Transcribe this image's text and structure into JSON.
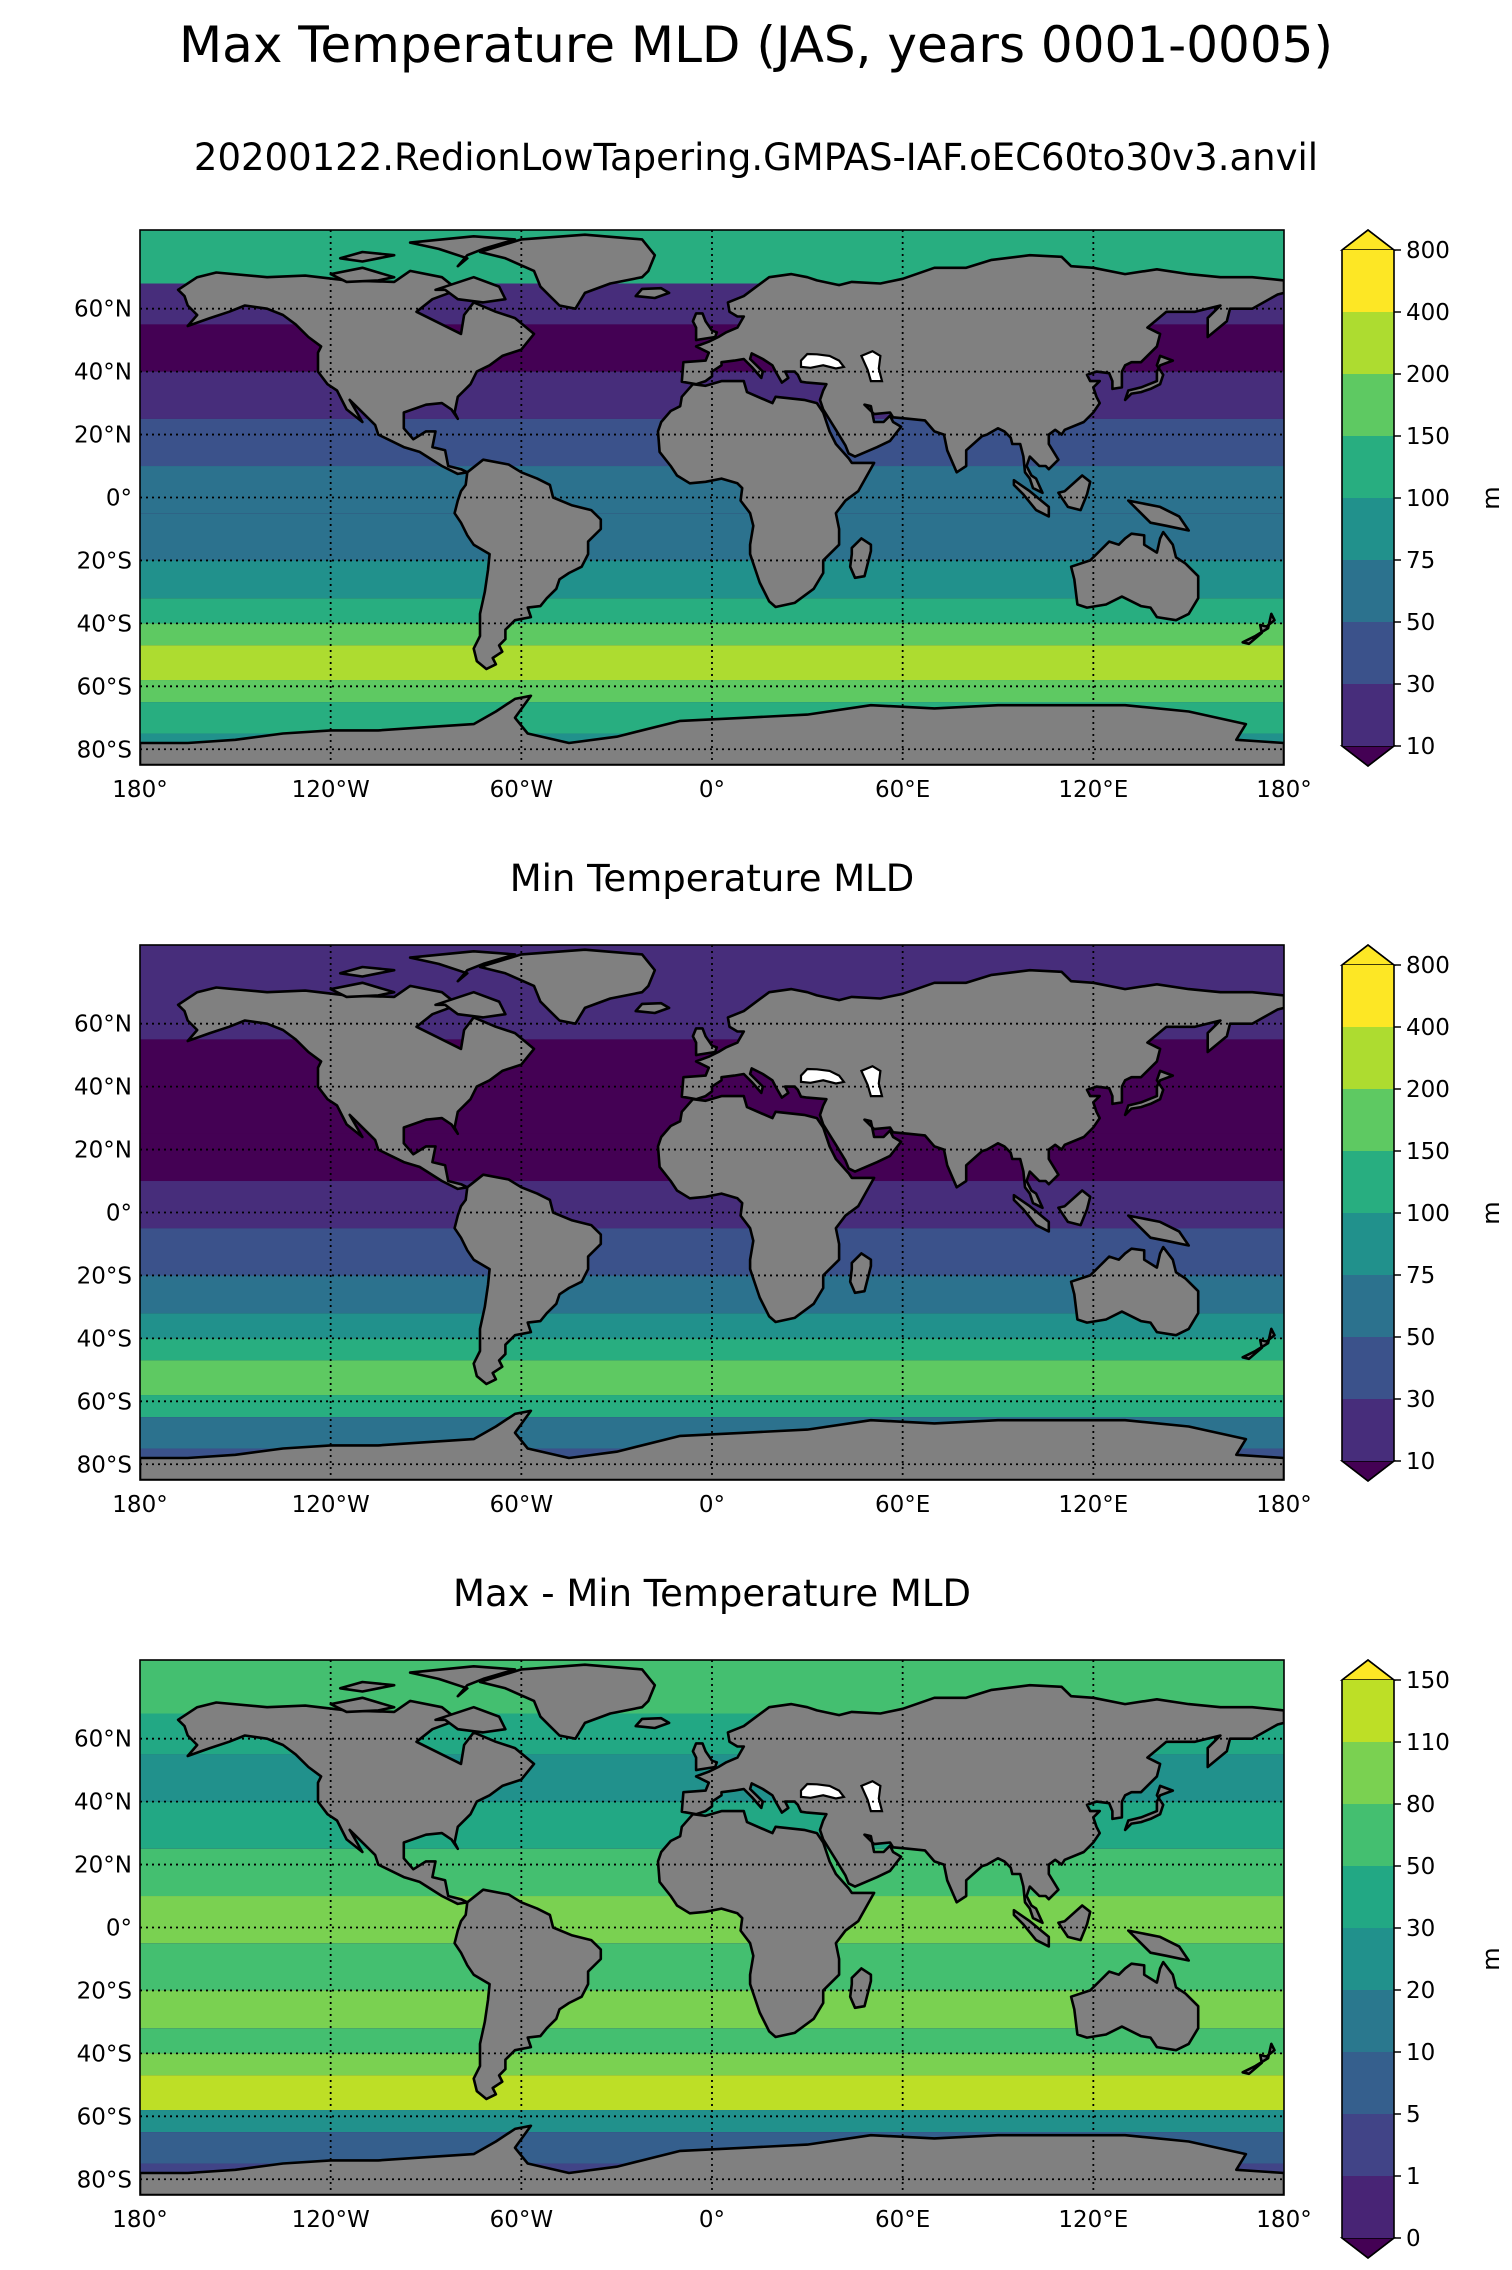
{
  "title": "Max Temperature MLD (JAS, years 0001-0005)",
  "subtitle": "20200122.RedionLowTapering.GMPAS-IAF.oEC60to30v3.anvil",
  "land_color": "#808080",
  "chart_data": [
    {
      "type": "heatmap",
      "title": "",
      "lon_ticks": [
        "180°",
        "120°W",
        "60°W",
        "0°",
        "60°E",
        "120°E",
        "180°"
      ],
      "lat_ticks": [
        "60°N",
        "40°N",
        "20°N",
        "0°",
        "20°S",
        "40°S",
        "60°S",
        "80°S"
      ],
      "lat_range": [
        -85,
        85
      ],
      "lon_range": [
        -180,
        180
      ],
      "grid": true,
      "colorbar": {
        "unit": "m",
        "levels": [
          "10",
          "30",
          "50",
          "75",
          "100",
          "150",
          "200",
          "400",
          "800"
        ],
        "colors": [
          "#440154",
          "#472d7b",
          "#3b528b",
          "#2c728e",
          "#21918c",
          "#28ae80",
          "#5ec962",
          "#addc30",
          "#fde725"
        ],
        "extend": "both"
      },
      "bands": [
        {
          "lat": [
            68,
            85
          ],
          "level": 5
        },
        {
          "lat": [
            55,
            68
          ],
          "level": 1
        },
        {
          "lat": [
            40,
            55
          ],
          "level": 0
        },
        {
          "lat": [
            25,
            40
          ],
          "level": 1
        },
        {
          "lat": [
            10,
            25
          ],
          "level": 2
        },
        {
          "lat": [
            -5,
            10
          ],
          "level": 3
        },
        {
          "lat": [
            -20,
            -5
          ],
          "level": 3
        },
        {
          "lat": [
            -32,
            -20
          ],
          "level": 4
        },
        {
          "lat": [
            -40,
            -32
          ],
          "level": 5
        },
        {
          "lat": [
            -47,
            -40
          ],
          "level": 6
        },
        {
          "lat": [
            -58,
            -47
          ],
          "level": 7
        },
        {
          "lat": [
            -65,
            -58
          ],
          "level": 6
        },
        {
          "lat": [
            -75,
            -65
          ],
          "level": 5
        },
        {
          "lat": [
            -85,
            -75
          ],
          "level": 4
        }
      ]
    },
    {
      "type": "heatmap",
      "title": "Min Temperature MLD",
      "lon_ticks": [
        "180°",
        "120°W",
        "60°W",
        "0°",
        "60°E",
        "120°E",
        "180°"
      ],
      "lat_ticks": [
        "60°N",
        "40°N",
        "20°N",
        "0°",
        "20°S",
        "40°S",
        "60°S",
        "80°S"
      ],
      "lat_range": [
        -85,
        85
      ],
      "lon_range": [
        -180,
        180
      ],
      "grid": true,
      "colorbar": {
        "unit": "m",
        "levels": [
          "10",
          "30",
          "50",
          "75",
          "100",
          "150",
          "200",
          "400",
          "800"
        ],
        "colors": [
          "#440154",
          "#472d7b",
          "#3b528b",
          "#2c728e",
          "#21918c",
          "#28ae80",
          "#5ec962",
          "#addc30",
          "#fde725"
        ],
        "extend": "both"
      },
      "bands": [
        {
          "lat": [
            68,
            85
          ],
          "level": 1
        },
        {
          "lat": [
            55,
            68
          ],
          "level": 1
        },
        {
          "lat": [
            40,
            55
          ],
          "level": 0
        },
        {
          "lat": [
            25,
            40
          ],
          "level": 0
        },
        {
          "lat": [
            10,
            25
          ],
          "level": 0
        },
        {
          "lat": [
            -5,
            10
          ],
          "level": 1
        },
        {
          "lat": [
            -20,
            -5
          ],
          "level": 2
        },
        {
          "lat": [
            -32,
            -20
          ],
          "level": 3
        },
        {
          "lat": [
            -40,
            -32
          ],
          "level": 4
        },
        {
          "lat": [
            -47,
            -40
          ],
          "level": 5
        },
        {
          "lat": [
            -58,
            -47
          ],
          "level": 6
        },
        {
          "lat": [
            -65,
            -58
          ],
          "level": 5
        },
        {
          "lat": [
            -75,
            -65
          ],
          "level": 3
        },
        {
          "lat": [
            -85,
            -75
          ],
          "level": 2
        }
      ]
    },
    {
      "type": "heatmap",
      "title": "Max - Min Temperature MLD",
      "lon_ticks": [
        "180°",
        "120°W",
        "60°W",
        "0°",
        "60°E",
        "120°E",
        "180°"
      ],
      "lat_ticks": [
        "60°N",
        "40°N",
        "20°N",
        "0°",
        "20°S",
        "40°S",
        "60°S",
        "80°S"
      ],
      "lat_range": [
        -85,
        85
      ],
      "lon_range": [
        -180,
        180
      ],
      "grid": true,
      "colorbar": {
        "unit": "m",
        "levels": [
          "0",
          "1",
          "5",
          "10",
          "20",
          "30",
          "50",
          "80",
          "110",
          "150"
        ],
        "colors": [
          "#440154",
          "#482475",
          "#414487",
          "#355f8d",
          "#2a788e",
          "#21918c",
          "#22a884",
          "#44bf70",
          "#7ad151",
          "#bddf26",
          "#fde725"
        ],
        "extend": "both"
      },
      "bands": [
        {
          "lat": [
            68,
            85
          ],
          "level": 7
        },
        {
          "lat": [
            55,
            68
          ],
          "level": 6
        },
        {
          "lat": [
            40,
            55
          ],
          "level": 5
        },
        {
          "lat": [
            25,
            40
          ],
          "level": 6
        },
        {
          "lat": [
            10,
            25
          ],
          "level": 7
        },
        {
          "lat": [
            -5,
            10
          ],
          "level": 8
        },
        {
          "lat": [
            -20,
            -5
          ],
          "level": 7
        },
        {
          "lat": [
            -32,
            -20
          ],
          "level": 8
        },
        {
          "lat": [
            -40,
            -32
          ],
          "level": 7
        },
        {
          "lat": [
            -47,
            -40
          ],
          "level": 8
        },
        {
          "lat": [
            -58,
            -47
          ],
          "level": 9
        },
        {
          "lat": [
            -65,
            -58
          ],
          "level": 5
        },
        {
          "lat": [
            -75,
            -65
          ],
          "level": 3
        },
        {
          "lat": [
            -85,
            -75
          ],
          "level": 2
        }
      ]
    }
  ]
}
